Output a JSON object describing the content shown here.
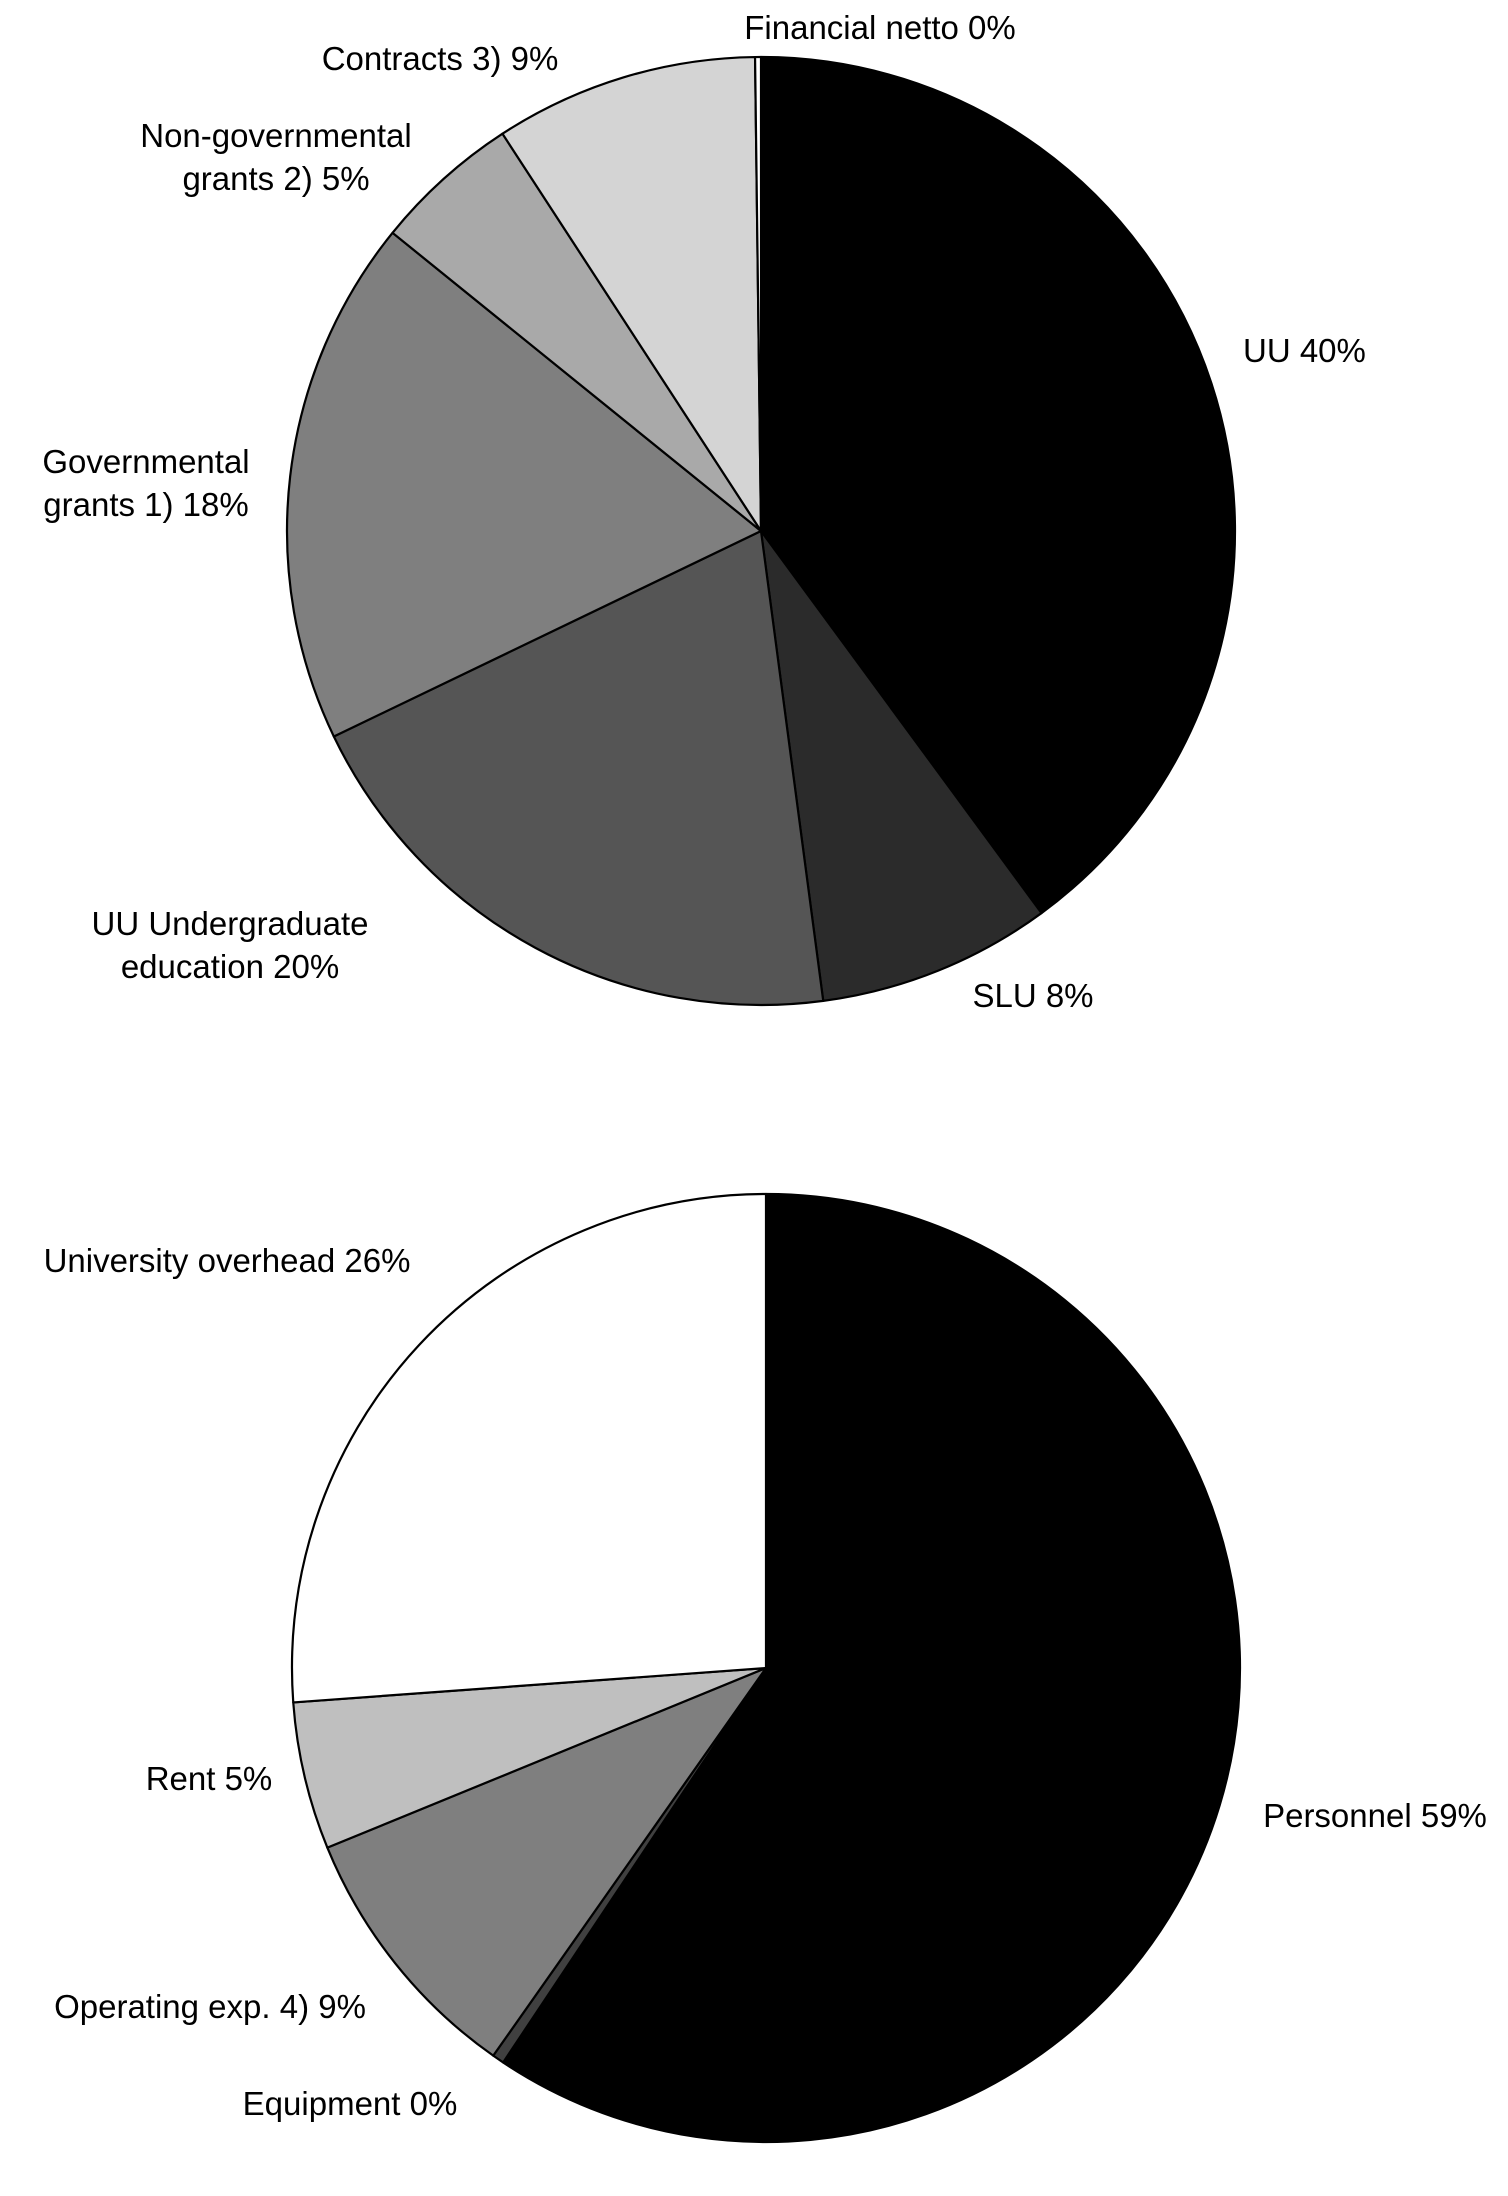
{
  "chart_data": [
    {
      "type": "pie",
      "slices": [
        {
          "label_lines": [
            "UU 40%"
          ],
          "category": "UU",
          "value": 40,
          "color": "#000000"
        },
        {
          "label_lines": [
            "SLU 8%"
          ],
          "category": "SLU",
          "value": 8,
          "color": "#2b2b2b"
        },
        {
          "label_lines": [
            "UU Undergraduate",
            "education 20%"
          ],
          "category": "UU Undergraduate education",
          "value": 20,
          "color": "#555555"
        },
        {
          "label_lines": [
            "Governmental",
            "grants 1) 18%"
          ],
          "category": "Governmental grants 1)",
          "value": 18,
          "color": "#7f7f7f"
        },
        {
          "label_lines": [
            "Non-governmental",
            "grants 2) 5%"
          ],
          "category": "Non-governmental grants 2)",
          "value": 5,
          "color": "#a9a9a9"
        },
        {
          "label_lines": [
            "Contracts 3) 9%"
          ],
          "category": "Contracts 3)",
          "value": 9,
          "color": "#d4d4d4"
        },
        {
          "label_lines": [
            "Financial netto 0%"
          ],
          "category": "Financial netto",
          "value": 0.2,
          "color": "#ffffff"
        }
      ]
    },
    {
      "type": "pie",
      "slices": [
        {
          "label_lines": [
            "Personnel 59%"
          ],
          "category": "Personnel",
          "value": 59,
          "color": "#000000"
        },
        {
          "label_lines": [
            "Equipment 0%"
          ],
          "category": "Equipment",
          "value": 0.4,
          "color": "#404040"
        },
        {
          "label_lines": [
            "Operating exp. 4) 9%"
          ],
          "category": "Operating exp. 4)",
          "value": 9,
          "color": "#7f7f7f"
        },
        {
          "label_lines": [
            "Rent 5%"
          ],
          "category": "Rent 5%",
          "value": 5,
          "color": "#bfbfbf"
        },
        {
          "label_lines": [
            "University overhead 26%"
          ],
          "category": "University overhead",
          "value": 26,
          "color": "#ffffff"
        }
      ]
    }
  ]
}
